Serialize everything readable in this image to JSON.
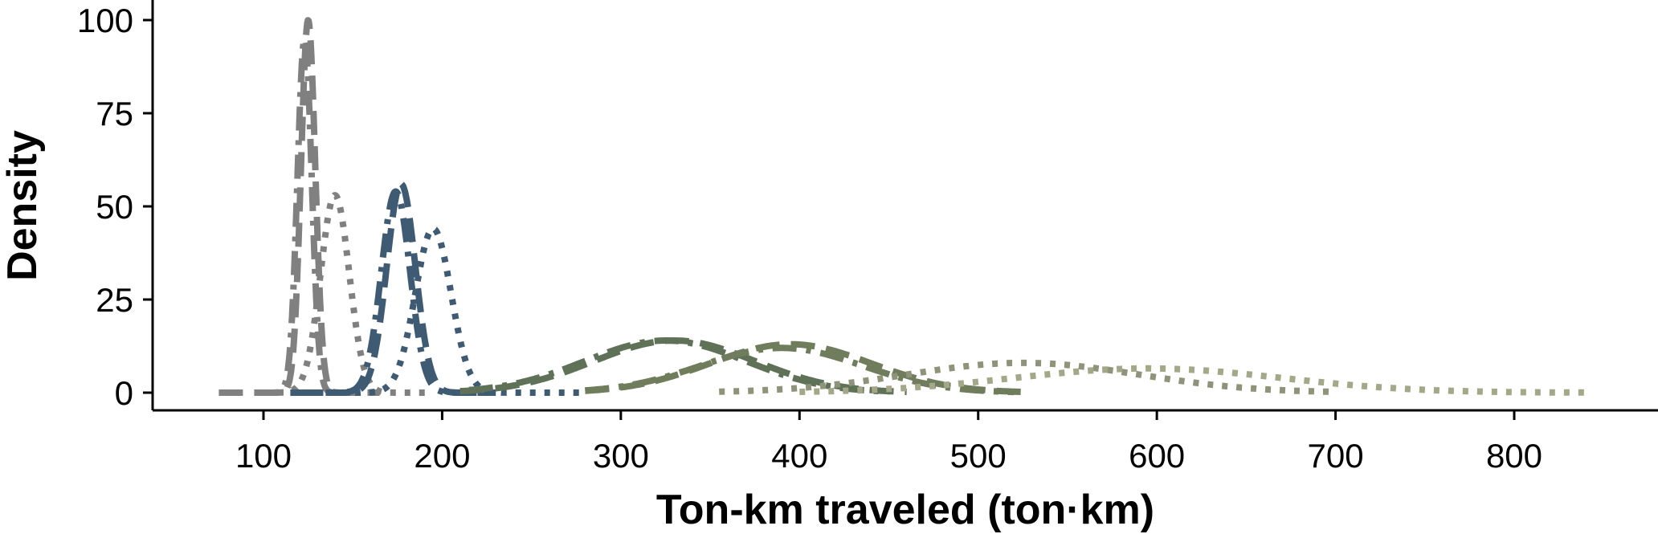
{
  "chart_data": {
    "type": "line",
    "title": "",
    "xlabel": "Ton-km traveled (ton·km)",
    "ylabel": "Density",
    "xlim": [
      40,
      880
    ],
    "ylim": [
      -5,
      105
    ],
    "xticks": [
      100,
      200,
      300,
      400,
      500,
      600,
      700,
      800
    ],
    "yticks": [
      0,
      25,
      50,
      75,
      100
    ],
    "grid": false,
    "legend": "none",
    "series": [
      {
        "color": "#808080",
        "dash": "dashed",
        "peak": {
          "x": 125,
          "y": 100
        },
        "sigma": 4,
        "x_range": [
          75,
          165
        ]
      },
      {
        "color": "#808080",
        "dash": "dashdot",
        "peak": {
          "x": 123,
          "y": 95
        },
        "sigma": 4,
        "x_range": [
          95,
          155
        ]
      },
      {
        "color": "#808080",
        "dash": "dotted",
        "peak": {
          "x": 140,
          "y": 53
        },
        "sigma": 8,
        "x_range": [
          100,
          195
        ]
      },
      {
        "color": "#3f5a73",
        "dash": "dashed",
        "peak": {
          "x": 177,
          "y": 56
        },
        "sigma": 8,
        "x_range": [
          115,
          230
        ]
      },
      {
        "color": "#3f5a73",
        "dash": "dashdot",
        "peak": {
          "x": 174,
          "y": 54
        },
        "sigma": 8,
        "x_range": [
          120,
          225
        ]
      },
      {
        "color": "#3f5a73",
        "dash": "dotted",
        "peak": {
          "x": 195,
          "y": 44
        },
        "sigma": 10,
        "x_range": [
          135,
          280
        ]
      },
      {
        "color": "#5f7258",
        "dash": "dashed",
        "peak": {
          "x": 330,
          "y": 14
        },
        "sigma": 45,
        "x_range": [
          210,
          460
        ]
      },
      {
        "color": "#5f7258",
        "dash": "dashdot",
        "peak": {
          "x": 325,
          "y": 14
        },
        "sigma": 45,
        "x_range": [
          215,
          450
        ]
      },
      {
        "color": "#6f7d5c",
        "dash": "dashed",
        "peak": {
          "x": 395,
          "y": 13
        },
        "sigma": 45,
        "x_range": [
          280,
          530
        ]
      },
      {
        "color": "#6f7d5c",
        "dash": "dashdot",
        "peak": {
          "x": 390,
          "y": 12
        },
        "sigma": 45,
        "x_range": [
          280,
          520
        ]
      },
      {
        "color": "#8e9479",
        "dash": "dotted",
        "peak": {
          "x": 525,
          "y": 8
        },
        "sigma": 65,
        "x_range": [
          355,
          700
        ]
      },
      {
        "color": "#a5a888",
        "dash": "dotted",
        "peak": {
          "x": 595,
          "y": 6.5
        },
        "sigma": 75,
        "x_range": [
          400,
          840
        ]
      }
    ]
  }
}
